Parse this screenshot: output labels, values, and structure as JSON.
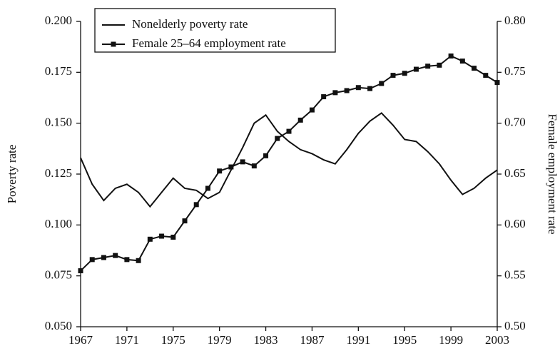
{
  "chart_data": {
    "type": "line",
    "ylabel": "Poverty rate",
    "y2label": "Female employment rate",
    "x": [
      1967,
      1968,
      1969,
      1970,
      1971,
      1972,
      1973,
      1974,
      1975,
      1976,
      1977,
      1978,
      1979,
      1980,
      1981,
      1982,
      1983,
      1984,
      1985,
      1986,
      1987,
      1988,
      1989,
      1990,
      1991,
      1992,
      1993,
      1994,
      1995,
      1996,
      1997,
      1998,
      1999,
      2000,
      2001,
      2002,
      2003
    ],
    "series": [
      {
        "name": "Nonelderly poverty rate",
        "color": "#111111",
        "marker": "none",
        "values": [
          0.133,
          0.12,
          0.112,
          0.118,
          0.12,
          0.116,
          0.109,
          0.116,
          0.123,
          0.118,
          0.117,
          0.113,
          0.116,
          0.127,
          0.138,
          0.15,
          0.154,
          0.146,
          0.141,
          0.137,
          0.135,
          0.132,
          0.13,
          0.137,
          0.145,
          0.151,
          0.155,
          0.149,
          0.142,
          0.141,
          0.136,
          0.13,
          0.122,
          0.115,
          0.118,
          0.123,
          0.127
        ]
      },
      {
        "name": "Female 25–64 employment rate",
        "color": "#111111",
        "marker": "square",
        "axis": "y2",
        "values": [
          0.555,
          0.566,
          0.568,
          0.57,
          0.566,
          0.565,
          0.586,
          0.589,
          0.588,
          0.604,
          0.62,
          0.636,
          0.653,
          0.657,
          0.662,
          0.658,
          0.668,
          0.685,
          0.692,
          0.703,
          0.713,
          0.726,
          0.73,
          0.732,
          0.735,
          0.734,
          0.739,
          0.747,
          0.749,
          0.753,
          0.756,
          0.757,
          0.766,
          0.761,
          0.754,
          0.747,
          0.74
        ]
      }
    ],
    "xlim": [
      1967,
      2003
    ],
    "xticks": [
      1967,
      1971,
      1975,
      1979,
      1983,
      1987,
      1991,
      1995,
      1999,
      2003
    ],
    "ylim": [
      0.05,
      0.2
    ],
    "yticks": [
      {
        "value": 0.05,
        "label": "0.050"
      },
      0.075,
      {
        "value": 0.1,
        "label": "0.100"
      },
      0.125,
      {
        "value": 0.15,
        "label": "0.150"
      },
      0.175,
      {
        "value": 0.2,
        "label": "0.200"
      }
    ],
    "y2lim": [
      0.5,
      0.8
    ],
    "y2ticks": [
      {
        "value": 0.5,
        "label": "0.50"
      },
      0.55,
      {
        "value": 0.6,
        "label": "0.60"
      },
      0.65,
      {
        "value": 0.7,
        "label": "0.70"
      },
      0.75,
      {
        "value": 0.8,
        "label": "0.80"
      }
    ],
    "legend": "upper left"
  }
}
